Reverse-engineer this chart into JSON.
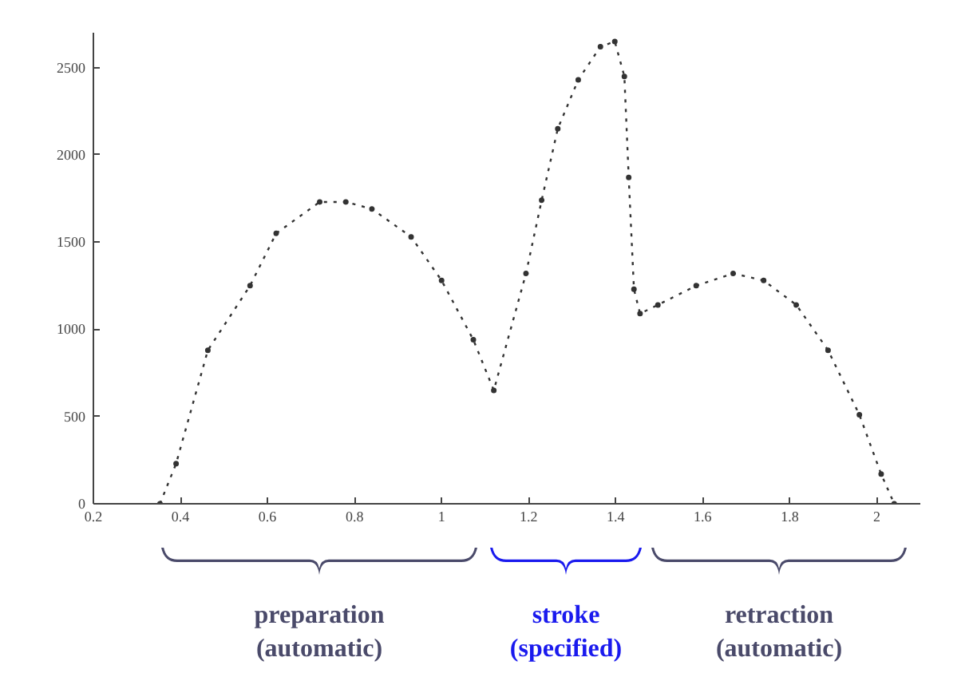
{
  "chart_data": {
    "type": "line",
    "x": [
      0.353,
      0.39,
      0.463,
      0.56,
      0.62,
      0.72,
      0.78,
      0.84,
      0.93,
      1.0,
      1.073,
      1.12,
      1.194,
      1.23,
      1.267,
      1.314,
      1.365,
      1.398,
      1.42,
      1.43,
      1.442,
      1.456,
      1.497,
      1.585,
      1.67,
      1.74,
      1.815,
      1.888,
      1.96,
      2.01,
      2.04
    ],
    "series": [
      {
        "color": "#333333",
        "values": [
          0,
          230,
          880,
          1250,
          1550,
          1730,
          1730,
          1690,
          1530,
          1280,
          940,
          650,
          1320,
          1740,
          2150,
          2430,
          2620,
          2650,
          2450,
          1870,
          1230,
          1090,
          1140,
          1250,
          1320,
          1280,
          1140,
          880,
          510,
          170,
          0
        ]
      }
    ],
    "xlim": [
      0.2,
      2.1
    ],
    "ylim": [
      0,
      2700
    ],
    "xticks": [
      0.2,
      0.4,
      0.6,
      0.8,
      1,
      1.2,
      1.4,
      1.6,
      1.8,
      2
    ],
    "yticks": [
      0,
      500,
      1000,
      1500,
      2000,
      2500
    ],
    "grid": false,
    "marker": "circle",
    "line_style": "dotted",
    "annotations": [
      "preparation\n(automatic)",
      "stroke\n(specified)",
      "retraction\n(automatic)"
    ]
  }
}
